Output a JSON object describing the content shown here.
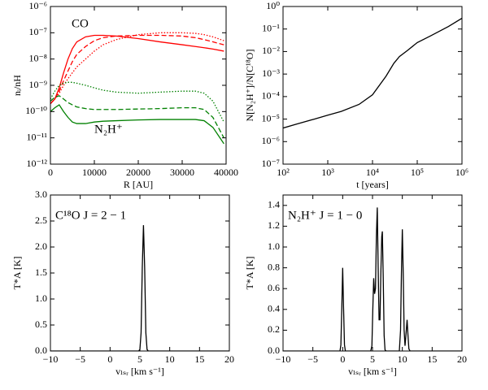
{
  "chart_data": [
    {
      "type": "line",
      "xlabel": "R [AU]",
      "ylabel": "nᵢ/nH",
      "yscale": "log",
      "xlim": [
        0,
        40000
      ],
      "ylim": [
        1e-12,
        1e-06
      ],
      "xticks": [
        0,
        10000,
        20000,
        30000,
        40000
      ],
      "yticks": [
        {
          "value": 1e-12,
          "label": "10⁻¹²"
        },
        {
          "value": 1e-11,
          "label": "10⁻¹¹"
        },
        {
          "value": 1e-10,
          "label": "10⁻¹⁰"
        },
        {
          "value": 1e-09,
          "label": "10⁻⁹"
        },
        {
          "value": 1e-08,
          "label": "10⁻⁸"
        },
        {
          "value": 1e-07,
          "label": "10⁻⁷"
        },
        {
          "value": 1e-06,
          "label": "10⁻⁶"
        }
      ],
      "x": [
        0,
        1000,
        2000,
        3000,
        4000,
        5000,
        6000,
        8000,
        10000,
        12000,
        15000,
        20000,
        25000,
        30000,
        33000,
        35000,
        37000,
        39500
      ],
      "series": [
        {
          "color": "#ff0000",
          "dash": "solid",
          "values": [
            2e-10,
            3e-10,
            8e-10,
            3e-09,
            1e-08,
            2.5e-08,
            4.5e-08,
            7e-08,
            8e-08,
            8e-08,
            7.5e-08,
            6e-08,
            4.5e-08,
            3.5e-08,
            3e-08,
            2.7e-08,
            2.4e-08,
            2e-08
          ]
        },
        {
          "color": "#ff0000",
          "dash": "dashed",
          "values": [
            2e-10,
            3e-10,
            6e-10,
            1.5e-09,
            3.5e-09,
            8e-09,
            1.5e-08,
            3e-08,
            5e-08,
            6.5e-08,
            7.5e-08,
            8e-08,
            8e-08,
            7.5e-08,
            6.5e-08,
            5.5e-08,
            4.5e-08,
            3.5e-08
          ]
        },
        {
          "color": "#ff0000",
          "dash": "dotted",
          "values": [
            2e-10,
            3e-10,
            5e-10,
            1e-09,
            1.8e-09,
            3e-09,
            5e-09,
            1e-08,
            2e-08,
            3.5e-08,
            5.5e-08,
            8.5e-08,
            1e-07,
            1e-07,
            9.5e-08,
            8.5e-08,
            7e-08,
            5e-08
          ]
        },
        {
          "color": "#008000",
          "dash": "solid",
          "values": [
            1e-10,
            1.4e-10,
            1.8e-10,
            1e-10,
            6e-11,
            4e-11,
            3.5e-11,
            3.5e-11,
            4e-11,
            4.3e-11,
            4.5e-11,
            4.8e-11,
            5e-11,
            5e-11,
            5e-11,
            4.5e-11,
            2.5e-11,
            6e-12
          ]
        },
        {
          "color": "#008000",
          "dash": "dashed",
          "values": [
            2.5e-10,
            3.5e-10,
            4e-10,
            3e-10,
            2.2e-10,
            1.8e-10,
            1.5e-10,
            1.3e-10,
            1.2e-10,
            1.2e-10,
            1.2e-10,
            1.25e-10,
            1.3e-10,
            1.4e-10,
            1.4e-10,
            1.2e-10,
            6e-11,
            1e-11
          ]
        },
        {
          "color": "#008000",
          "dash": "dotted",
          "values": [
            3e-10,
            6e-10,
            1e-09,
            1.2e-09,
            1.3e-09,
            1.3e-09,
            1.2e-09,
            1e-09,
            8e-10,
            6.5e-10,
            5.5e-10,
            5e-10,
            5.5e-10,
            6e-10,
            6e-10,
            5e-10,
            2.5e-10,
            4e-11
          ]
        }
      ],
      "annotations": [
        {
          "text": "CO",
          "color": "#ff0000"
        },
        {
          "text": "N₂H⁺",
          "color": "#008000"
        }
      ]
    },
    {
      "type": "line",
      "xlabel": "t [years]",
      "ylabel": "N[N₂H⁺]/N[C¹⁸O]",
      "xscale": "log",
      "yscale": "log",
      "xlim": [
        100,
        1000000
      ],
      "ylim": [
        1e-07,
        1
      ],
      "xticks": [
        {
          "value": 100,
          "label": "10²"
        },
        {
          "value": 1000,
          "label": "10³"
        },
        {
          "value": 10000,
          "label": "10⁴"
        },
        {
          "value": 100000,
          "label": "10⁵"
        },
        {
          "value": 1000000,
          "label": "10⁶"
        }
      ],
      "yticks": [
        {
          "value": 1e-07,
          "label": "10⁻⁷"
        },
        {
          "value": 1e-06,
          "label": "10⁻⁶"
        },
        {
          "value": 1e-05,
          "label": "10⁻⁵"
        },
        {
          "value": 0.0001,
          "label": "10⁻⁴"
        },
        {
          "value": 0.001,
          "label": "10⁻³"
        },
        {
          "value": 0.01,
          "label": "10⁻²"
        },
        {
          "value": 0.1,
          "label": "10⁻¹"
        },
        {
          "value": 1,
          "label": "10⁰"
        }
      ],
      "x": [
        100,
        200,
        500,
        1000,
        2000,
        5000,
        10000,
        20000,
        30000,
        40000,
        60000,
        100000,
        200000,
        500000,
        1000000
      ],
      "series": [
        {
          "color": "#000000",
          "dash": "solid",
          "values": [
            4e-06,
            6e-06,
            1e-05,
            1.5e-05,
            2.2e-05,
            4.5e-05,
            0.00012,
            0.0008,
            0.003,
            0.006,
            0.011,
            0.025,
            0.05,
            0.13,
            0.3
          ]
        }
      ],
      "annotations": []
    },
    {
      "type": "line",
      "xlabel": "vₗₛᵣ [km s⁻¹]",
      "ylabel": "T*A [K]",
      "xlim": [
        -10,
        20
      ],
      "ylim": [
        0,
        3.0
      ],
      "xticks": [
        {
          "value": -10,
          "label": "−10"
        },
        {
          "value": -5,
          "label": "−5"
        },
        0,
        5,
        10,
        15,
        20
      ],
      "yticks": [
        {
          "value": 0,
          "label": "0.0"
        },
        {
          "value": 0.5,
          "label": "0.5"
        },
        {
          "value": 1,
          "label": "1.0"
        },
        {
          "value": 1.5,
          "label": "1.5"
        },
        {
          "value": 2,
          "label": "2.0"
        },
        {
          "value": 2.5,
          "label": "2.5"
        },
        {
          "value": 3,
          "label": "3.0"
        }
      ],
      "x": [
        -10,
        4.8,
        5.0,
        5.2,
        5.4,
        5.6,
        5.8,
        6.0,
        6.2,
        6.4,
        20
      ],
      "series": [
        {
          "color": "#000000",
          "dash": "solid",
          "values": [
            0,
            0,
            0.03,
            0.35,
            1.6,
            2.42,
            1.6,
            0.35,
            0.03,
            0,
            0
          ]
        }
      ],
      "annotations": [
        {
          "text": "C¹⁸O J = 2 − 1",
          "color": "#000000"
        }
      ]
    },
    {
      "type": "line",
      "xlabel": "vₗₛᵣ [km s⁻¹]",
      "ylabel": "T*A [K]",
      "xlim": [
        -10,
        20
      ],
      "ylim": [
        0,
        1.5
      ],
      "xticks": [
        {
          "value": -10,
          "label": "−10"
        },
        {
          "value": -5,
          "label": "−5"
        },
        0,
        5,
        10,
        15,
        20
      ],
      "yticks": [
        {
          "value": 0,
          "label": "0.0"
        },
        {
          "value": 0.2,
          "label": "0.2"
        },
        {
          "value": 0.4,
          "label": "0.4"
        },
        {
          "value": 0.6,
          "label": "0.6"
        },
        {
          "value": 0.8,
          "label": "0.8"
        },
        {
          "value": 1,
          "label": "1.0"
        },
        {
          "value": 1.2,
          "label": "1.2"
        },
        {
          "value": 1.4,
          "label": "1.4"
        }
      ],
      "x": [
        -10,
        -0.45,
        -0.3,
        -0.15,
        0,
        0.15,
        0.3,
        0.45,
        4.7,
        4.9,
        5.05,
        5.2,
        5.35,
        5.5,
        5.65,
        5.8,
        5.95,
        6.1,
        6.25,
        6.4,
        6.55,
        6.65,
        6.8,
        6.95,
        7.1,
        7.3,
        9.5,
        9.7,
        9.85,
        10.0,
        10.15,
        10.3,
        10.45,
        10.6,
        10.8,
        10.95,
        11.1,
        11.3,
        20
      ],
      "series": [
        {
          "color": "#000000",
          "dash": "solid",
          "values": [
            0,
            0,
            0.06,
            0.41,
            0.8,
            0.41,
            0.06,
            0,
            0,
            0.05,
            0.4,
            0.7,
            0.55,
            0.6,
            1.1,
            1.38,
            0.8,
            0.3,
            0.3,
            0.75,
            1.1,
            1.15,
            0.7,
            0.15,
            0.01,
            0,
            0,
            0.2,
            0.75,
            1.17,
            0.75,
            0.2,
            0.05,
            0.15,
            0.3,
            0.15,
            0.02,
            0,
            0
          ]
        }
      ],
      "annotations": [
        {
          "text": "N₂H⁺ J = 1 − 0",
          "color": "#000000"
        }
      ]
    }
  ]
}
